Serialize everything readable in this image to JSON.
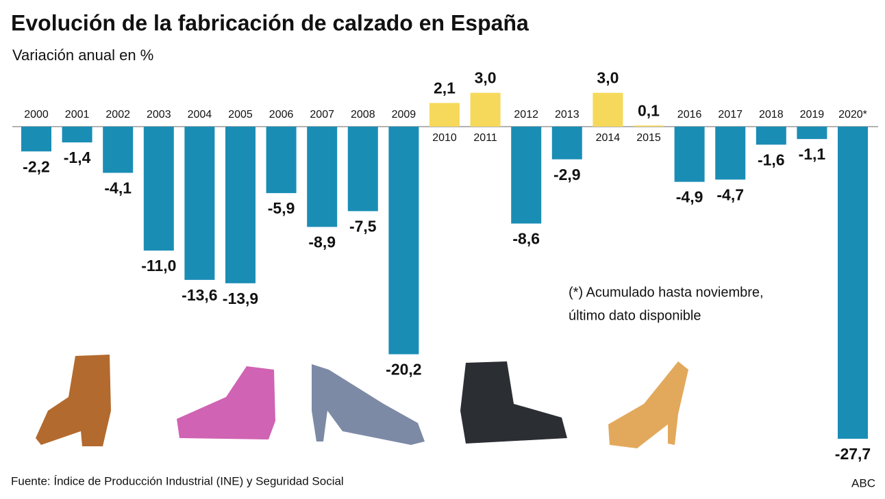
{
  "chart_data": {
    "type": "bar",
    "title": "Evolución de la fabricación de calzado en España",
    "subtitle": "Variación anual en %",
    "categories": [
      "2000",
      "2001",
      "2002",
      "2003",
      "2004",
      "2005",
      "2006",
      "2007",
      "2008",
      "2009",
      "2010",
      "2011",
      "2012",
      "2013",
      "2014",
      "2015",
      "2016",
      "2017",
      "2018",
      "2019",
      "2020*"
    ],
    "values": [
      -2.2,
      -1.4,
      -4.1,
      -11.0,
      -13.6,
      -13.9,
      -5.9,
      -8.9,
      -7.5,
      -20.2,
      2.1,
      3.0,
      -8.6,
      -2.9,
      3.0,
      0.1,
      -4.9,
      -4.7,
      -1.6,
      -1.1,
      -27.7
    ],
    "value_labels": [
      "-2,2",
      "-1,4",
      "-4,1",
      "-11,0",
      "-13,6",
      "-13,9",
      "-5,9",
      "-8,9",
      "-7,5",
      "-20,2",
      "2,1",
      "3,0",
      "-8,6",
      "-2,9",
      "3,0",
      "0,1",
      "-4,9",
      "-4,7",
      "-1,6",
      "-1,1",
      "-27,7"
    ],
    "negative_color": "#1a8db5",
    "positive_color": "#f6d95a",
    "note": [
      "(*) Acumulado hasta noviembre,",
      "último dato disponible"
    ],
    "source": "Fuente: Índice de Producción Industrial (INE) y Seguridad Social",
    "credit": "ABC"
  }
}
